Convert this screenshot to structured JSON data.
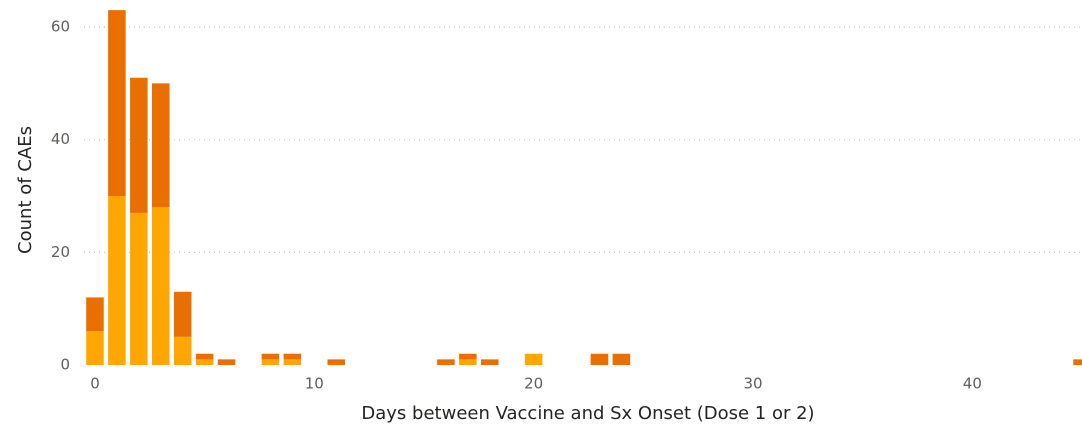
{
  "chart_data": {
    "type": "stacked_bar",
    "x_label": "Days between Vaccine and Sx Onset (Dose 1 or 2)",
    "y_label": "Count of CAEs",
    "x": [
      0,
      1,
      2,
      3,
      4,
      5,
      6,
      8,
      9,
      11,
      16,
      17,
      18,
      20,
      23,
      24,
      45
    ],
    "series": [
      {
        "color": "#FFA700",
        "values": [
          6,
          30,
          27,
          28,
          5,
          1,
          0,
          1,
          1,
          0,
          0,
          1,
          0,
          2,
          0,
          0,
          0
        ]
      },
      {
        "color": "#E86F00",
        "values": [
          6,
          33,
          24,
          22,
          8,
          1,
          1,
          1,
          1,
          1,
          1,
          1,
          1,
          0,
          2,
          2,
          1
        ]
      }
    ],
    "xlim": [
      -0.5,
      45
    ],
    "xticks": [
      0,
      10,
      20,
      30,
      40
    ],
    "ylim": [
      0,
      64
    ],
    "yticks": [
      0,
      20,
      40,
      60
    ],
    "grid": true
  }
}
